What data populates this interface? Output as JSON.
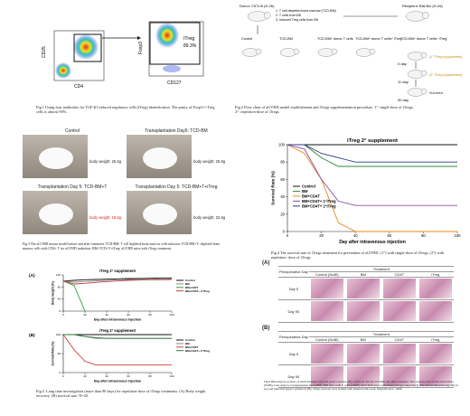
{
  "fig1": {
    "caption": "Fig.1 Using four antibodies for TGF-β1 induced regulatory cells (iTreg) identification. The purity of Foxp3+/-Treg cells is almost 90%.",
    "plot1": {
      "x_label": "CD4",
      "y_label": "CD25"
    },
    "plot2": {
      "x_label": "CD127",
      "y_label": "Foxp3",
      "gate_label": "iTreg",
      "gate_value": "89.3%"
    }
  },
  "fig2": {
    "caption": "Fig.2 Flow chart of aGVHD model establishment and iTregs supplementation procedure. 1°: single-dose of iTregs; 2°: repetition-dose of iTregs.",
    "donor": "Donor: C57L/6 (H-2b)",
    "donor_items": [
      "1. T cell-depleted bone marrow (TCD-BM)",
      "2. T cells from B6",
      "3. Induced Treg cells from B6"
    ],
    "recipient": "Recipient: BALB/c (H-2d)",
    "recipient_group": "TCD-BM+ donor T cells+ iTreg",
    "groups": [
      "Control",
      "TCD-BM",
      "TCD-BM+ donor T cells",
      "TCD-BM+ donor T cells+ iTreg"
    ],
    "steps": [
      {
        "day": "0 day",
        "note": "(1° iTreg supplement)"
      },
      {
        "day": "11 day",
        "note": "(2° iTreg supplement)"
      },
      {
        "day": "90 day",
        "note": "Survived"
      }
    ]
  },
  "fig3": {
    "caption": "Fig.3 The aGVHD mouse model before and after treatment. TCD-BM: T cell depleted-bone marrow cells infusion; TCD-BM+T: depleted-bone marrow cells with CD4+ T for aGVHD induction; BM+TCD+T+iTreg: aGVHD mice with iTregs treatment.",
    "panels": [
      {
        "title": "Control",
        "weight": "body weight: 25.6g"
      },
      {
        "title": "Transplantation Day5: TCD-BM",
        "weight": "body weight: 25.9g"
      },
      {
        "title": "Transplantation Day 5: TCD-BM+T",
        "weight": "body weight: 18.6g"
      },
      {
        "title": "Transplantation Day 5: TCD-BM+T+iTreg",
        "weight": "body weight: 22.6g"
      }
    ]
  },
  "fig5": {
    "caption": "Fig.5. Long time investigation (more than 90 days) for repetition-dose of iTregs treatments. (A) Body weight recovery. (B) survival rate. N=20."
  },
  "fig6": {
    "caption": "Fig.6 Histological sections of small intestines (A) and peyer's patches (B) of mice in 5th day and 90th day after treatment. The sections were from control mice (NoBI), bone marrow transplantation mice (BM), BM mice with T cells (CD4T) and CD4T mice with iTregs (iTreg), respectively. The arrows showed long villi in (A) and indicated peyer's patches in (B). Tissue sections were stained with hematoxylin-eosin. Magnification, 100X.",
    "tables": [
      {
        "panel": "(A)",
        "treatment": "Treatment",
        "header": "Perioperative Day",
        "columns": [
          "Control (NoBI)",
          "BM",
          "CD4T",
          "iTreg"
        ],
        "rows": [
          "Day 5",
          "Day 90"
        ]
      },
      {
        "panel": "(B)",
        "treatment": "Treatment",
        "header": "Perioperative Day",
        "columns": [
          "Control (NoBI)",
          "BM",
          "CD4T",
          "iTreg"
        ],
        "rows": [
          "Day 5",
          "Day 90"
        ]
      }
    ]
  },
  "chart_data": [
    {
      "type": "line",
      "title": "iTreg 2° supplement",
      "caption": "Fig.4 The survival rate of iTregs treatment for prevention of aGVHD. (1°) with single-dose of iTregs; (2°) with repetition -dose of iTregs.",
      "x_label": "Day after intravenous injection",
      "y_label": "Survival Rate (%)",
      "x": [
        0,
        10,
        20,
        30,
        40,
        50,
        60,
        70,
        80,
        90,
        100
      ],
      "xlim": [
        0,
        100
      ],
      "xticks": [
        0,
        20,
        40,
        60,
        80,
        100
      ],
      "ylim": [
        0,
        100
      ],
      "yticks": [
        0,
        20,
        40,
        60,
        80,
        100
      ],
      "series": [
        {
          "name": "Control",
          "color": "#111111",
          "values": [
            100,
            100,
            100,
            100,
            100,
            100,
            100,
            100,
            100,
            100,
            100
          ]
        },
        {
          "name": "BM",
          "color": "#2e8b3a",
          "values": [
            100,
            100,
            85,
            75,
            75,
            75,
            75,
            75,
            75,
            75,
            75
          ]
        },
        {
          "name": "BM+CD4T",
          "color": "#e88a1a",
          "values": [
            100,
            90,
            60,
            10,
            0,
            0,
            0,
            0,
            0,
            0,
            0
          ]
        },
        {
          "name": "BM+CD4T+ 1°iTreg",
          "color": "#8a4aa0",
          "values": [
            100,
            95,
            60,
            35,
            30,
            30,
            30,
            30,
            30,
            30,
            30
          ]
        },
        {
          "name": "BM+CD4T+ 2°iTreg",
          "color": "#2a3a8a",
          "values": [
            100,
            100,
            90,
            85,
            80,
            80,
            80,
            80,
            80,
            80,
            80
          ]
        }
      ]
    },
    {
      "type": "line",
      "panel": "(A)",
      "title": "iTreg 2° supplement",
      "x_label": "Day after intravenous injection",
      "y_label": "Body weight (%)",
      "x": [
        0,
        10,
        20,
        30,
        40,
        50,
        60,
        70,
        80,
        90,
        100
      ],
      "xlim": [
        0,
        100
      ],
      "xticks": [
        0,
        20,
        40,
        60,
        80,
        100
      ],
      "ylim": [
        0,
        120
      ],
      "yticks": [
        0,
        40,
        80,
        120
      ],
      "series": [
        {
          "name": "Control",
          "color": "#111111",
          "values": [
            100,
            102,
            104,
            105,
            106,
            107,
            108,
            108,
            109,
            110,
            110
          ]
        },
        {
          "name": "BM",
          "color": "#888888",
          "values": [
            100,
            96,
            98,
            100,
            102,
            104,
            105,
            106,
            106,
            107,
            108
          ]
        },
        {
          "name": "BM+CD4T",
          "color": "#2e9e3a",
          "values": [
            100,
            85,
            0,
            null,
            null,
            null,
            null,
            null,
            null,
            null,
            null
          ]
        },
        {
          "name": "BM+CD4T+ 2°iTreg",
          "color": "#c23b3b",
          "values": [
            100,
            90,
            92,
            95,
            98,
            100,
            102,
            103,
            104,
            104,
            105
          ]
        }
      ]
    },
    {
      "type": "line",
      "panel": "(B)",
      "title": "iTreg 2° supplement",
      "x_label": "Day after intravenous injection",
      "y_label": "Survival Rate (%)",
      "x": [
        0,
        10,
        20,
        30,
        40,
        50,
        60,
        70,
        80,
        90,
        100
      ],
      "xlim": [
        0,
        100
      ],
      "xticks": [
        0,
        20,
        40,
        60,
        80,
        100
      ],
      "ylim": [
        0,
        100
      ],
      "yticks": [
        0,
        50,
        100
      ],
      "series": [
        {
          "name": "Control",
          "color": "#111111",
          "values": [
            100,
            100,
            100,
            100,
            100,
            100,
            100,
            100,
            100,
            100,
            100
          ]
        },
        {
          "name": "BM",
          "color": "#888888",
          "values": [
            100,
            100,
            95,
            90,
            90,
            90,
            90,
            90,
            90,
            90,
            90
          ]
        },
        {
          "name": "BM+CD4T",
          "color": "#d23b3b",
          "values": [
            100,
            60,
            30,
            20,
            20,
            20,
            20,
            20,
            20,
            20,
            20
          ]
        },
        {
          "name": "BM+CD4T+ 2°iTreg",
          "color": "#2a7a3a",
          "values": [
            100,
            100,
            95,
            92,
            90,
            90,
            90,
            90,
            90,
            90,
            90
          ]
        }
      ]
    }
  ]
}
